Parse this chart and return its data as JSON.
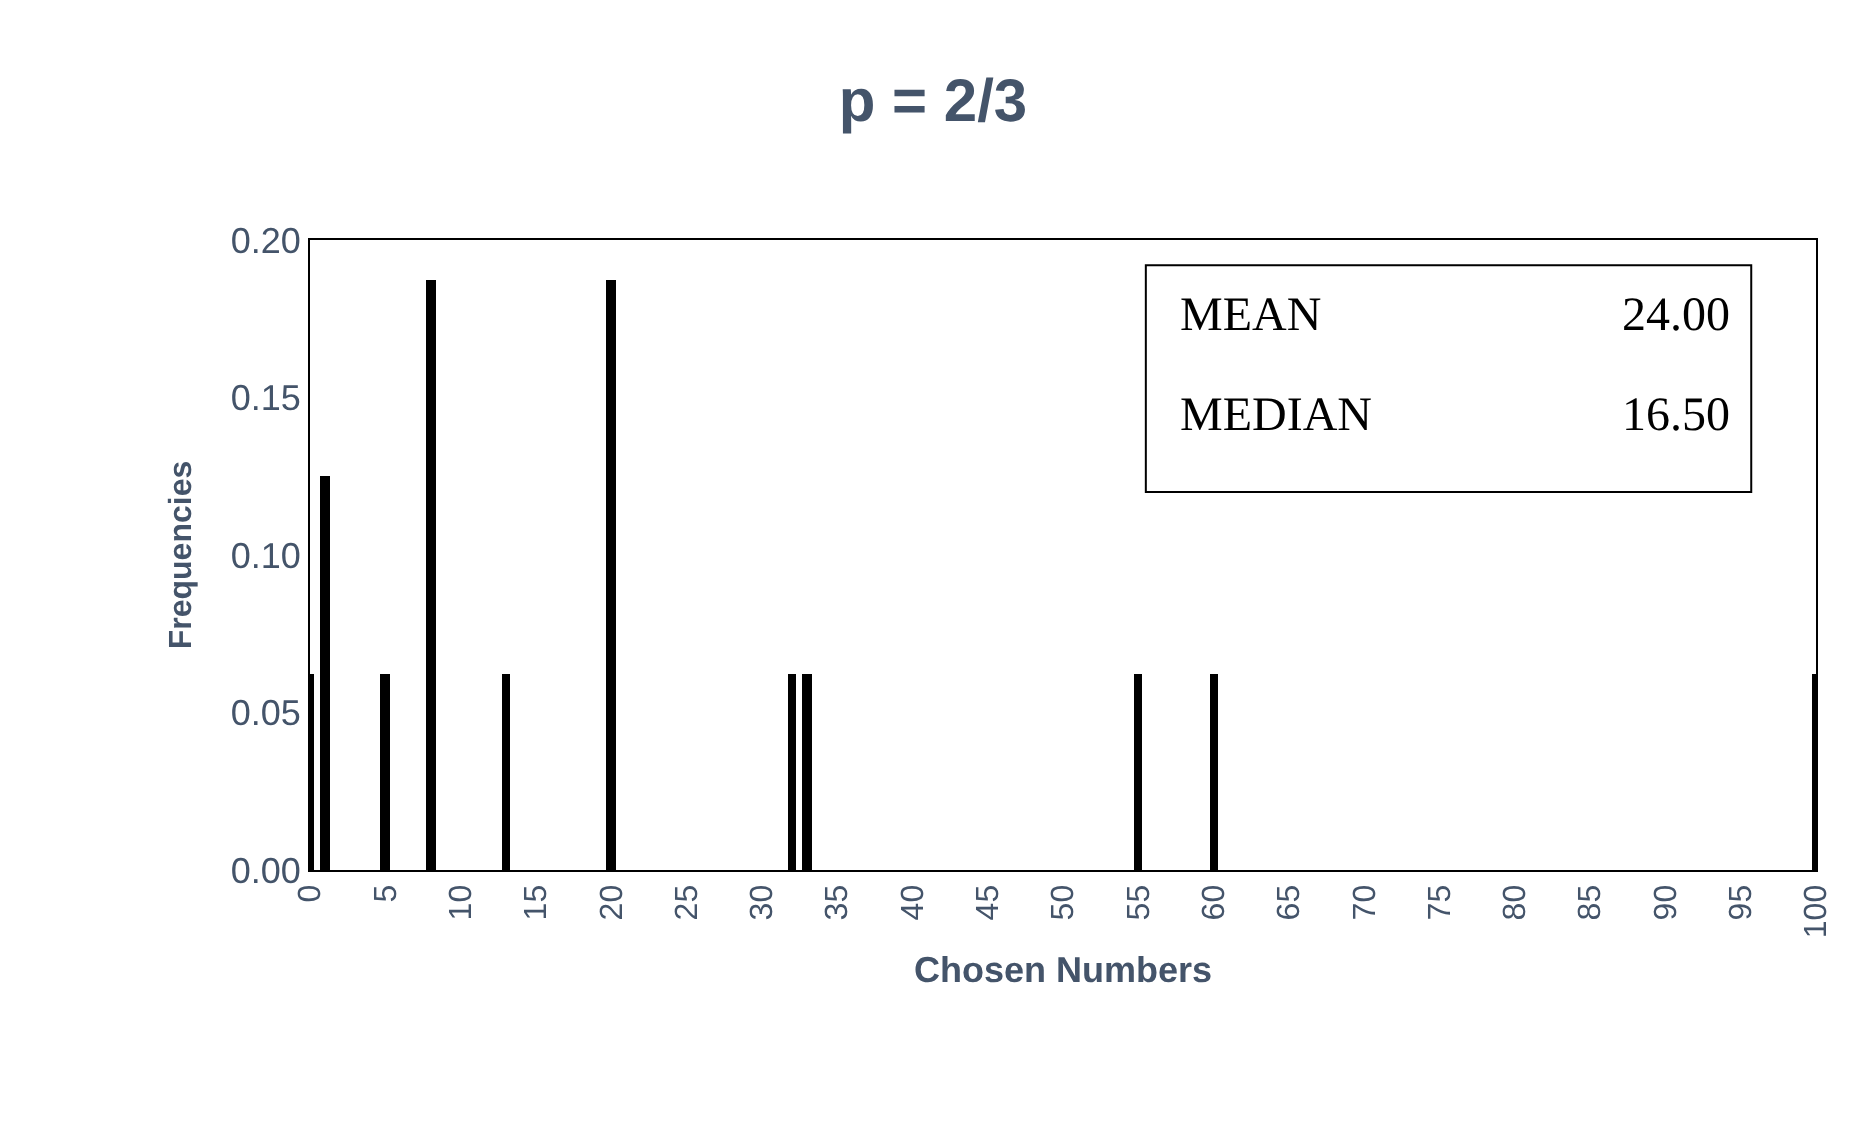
{
  "chart_data": {
    "type": "bar",
    "title": "p = 2/3",
    "xlabel": "Chosen Numbers",
    "ylabel": "Frequencies",
    "x": [
      0,
      1,
      5,
      8,
      13,
      20,
      32,
      33,
      55,
      60,
      100
    ],
    "values": [
      0.0625,
      0.125,
      0.0625,
      0.1875,
      0.0625,
      0.1875,
      0.0625,
      0.0625,
      0.0625,
      0.0625,
      0.0625
    ],
    "color": "#000000",
    "xlim": [
      0,
      100
    ],
    "xticks": [
      0,
      5,
      10,
      15,
      20,
      25,
      30,
      35,
      40,
      45,
      50,
      55,
      60,
      65,
      70,
      75,
      80,
      85,
      90,
      95,
      100
    ],
    "ylim": [
      0,
      0.2
    ],
    "yticks": [
      {
        "value": 0,
        "label": "0.00"
      },
      {
        "value": 0.05,
        "label": "0.05"
      },
      {
        "value": 0.1,
        "label": "0.10"
      },
      {
        "value": 0.15,
        "label": "0.15"
      },
      {
        "value": 0.2,
        "label": "0.20"
      }
    ],
    "grid": false,
    "annotations": [
      "MEAN 24.00",
      "MEDIAN 16.50"
    ]
  }
}
